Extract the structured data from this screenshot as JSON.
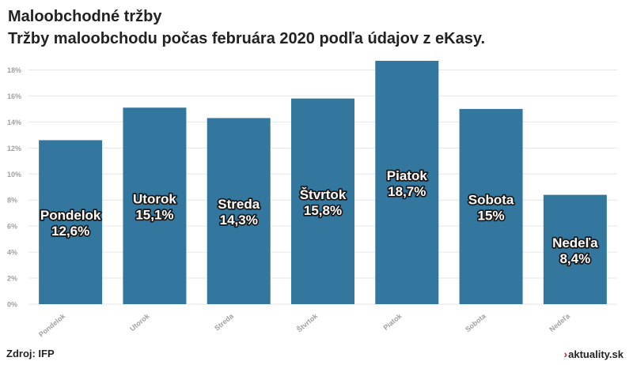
{
  "header": {
    "title": "Maloobchodné tržby",
    "subtitle": "Tržby maloobchodu počas februára 2020 podľa údajov z eKasy."
  },
  "footer": {
    "source": "Zdroj: IFP",
    "brand": "aktuality.sk",
    "brand_mark": "›"
  },
  "colors": {
    "bar": "#33779f",
    "grid": "#e6e6e6",
    "axis_label": "#a0a0a0",
    "label_fill": "#ffffff",
    "label_stroke": "#1a1a1a"
  },
  "chart_data": {
    "type": "bar",
    "categories": [
      "Pondelok",
      "Utorok",
      "Streda",
      "Štvrtok",
      "Piatok",
      "Sobota",
      "Nedeľa"
    ],
    "values": [
      12.6,
      15.1,
      14.3,
      15.8,
      18.7,
      15.0,
      8.4
    ],
    "data_labels": [
      "12,6%",
      "15,1%",
      "14,3%",
      "15,8%",
      "18,7%",
      "15%",
      "8,4%"
    ],
    "yticks": [
      0,
      2,
      4,
      6,
      8,
      10,
      12,
      14,
      16,
      18
    ],
    "ytick_labels": [
      "0%",
      "2%",
      "4%",
      "6%",
      "8%",
      "10%",
      "12%",
      "14%",
      "16%",
      "18%"
    ],
    "ylim": [
      0,
      19
    ],
    "grid": true,
    "title": "Maloobchodné tržby",
    "xlabel": "",
    "ylabel": ""
  }
}
